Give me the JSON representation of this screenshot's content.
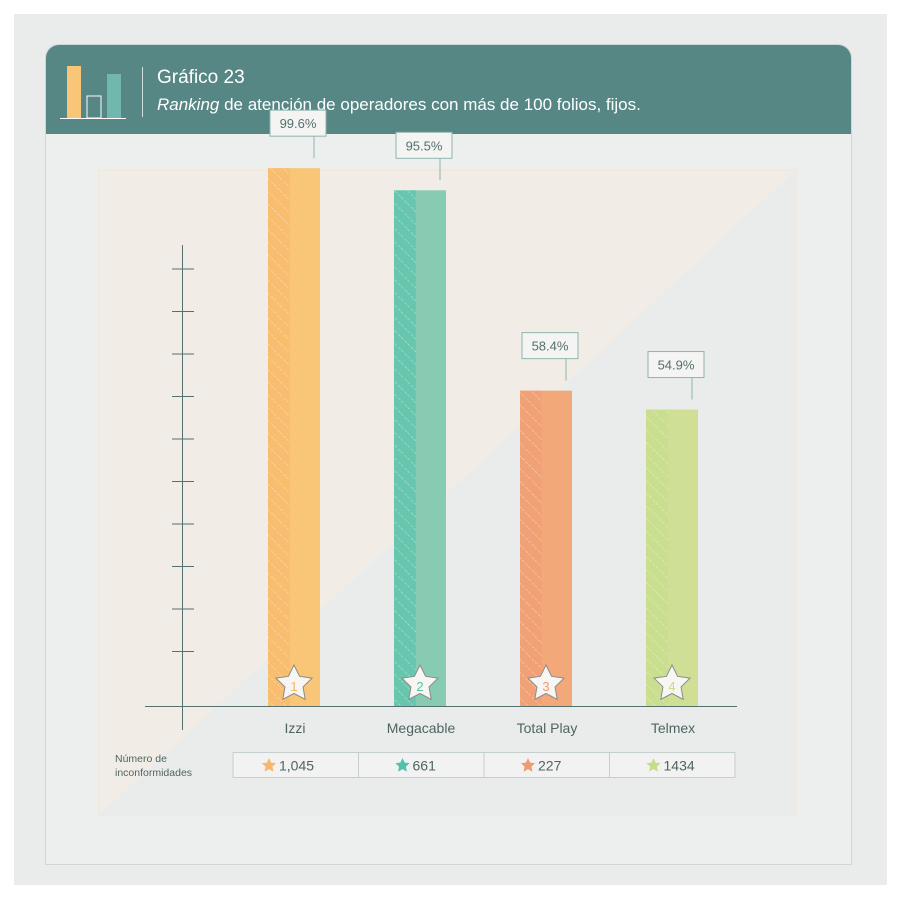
{
  "header": {
    "number": "Gráfico 23",
    "title_italic": "Ranking",
    "title_rest": " de atención de operadores con más de 100 folios, fijos."
  },
  "side_label": [
    "Número de",
    "inconformidades"
  ],
  "chart_data": {
    "type": "bar",
    "title": "Ranking de atención de operadores con más de 100 folios, fijos.",
    "categories": [
      "Izzi",
      "Megacable",
      "Total Play",
      "Telmex"
    ],
    "values": [
      99.6,
      95.5,
      58.4,
      54.9
    ],
    "value_labels": [
      "99.6%",
      "95.5%",
      "58.4%",
      "54.9%"
    ],
    "ranks": [
      "1",
      "2",
      "3",
      "4"
    ],
    "inconformidades": [
      "1,045",
      "661",
      "227",
      "1434"
    ],
    "ylim": [
      0,
      100
    ],
    "grid": false,
    "colors": [
      "#f9c577",
      "#88cbb3",
      "#f3a87a",
      "#cfe096"
    ],
    "accent_colors": [
      "#f7b76a",
      "#4ec2ac",
      "#ef9a73",
      "#c7dc8a"
    ]
  }
}
